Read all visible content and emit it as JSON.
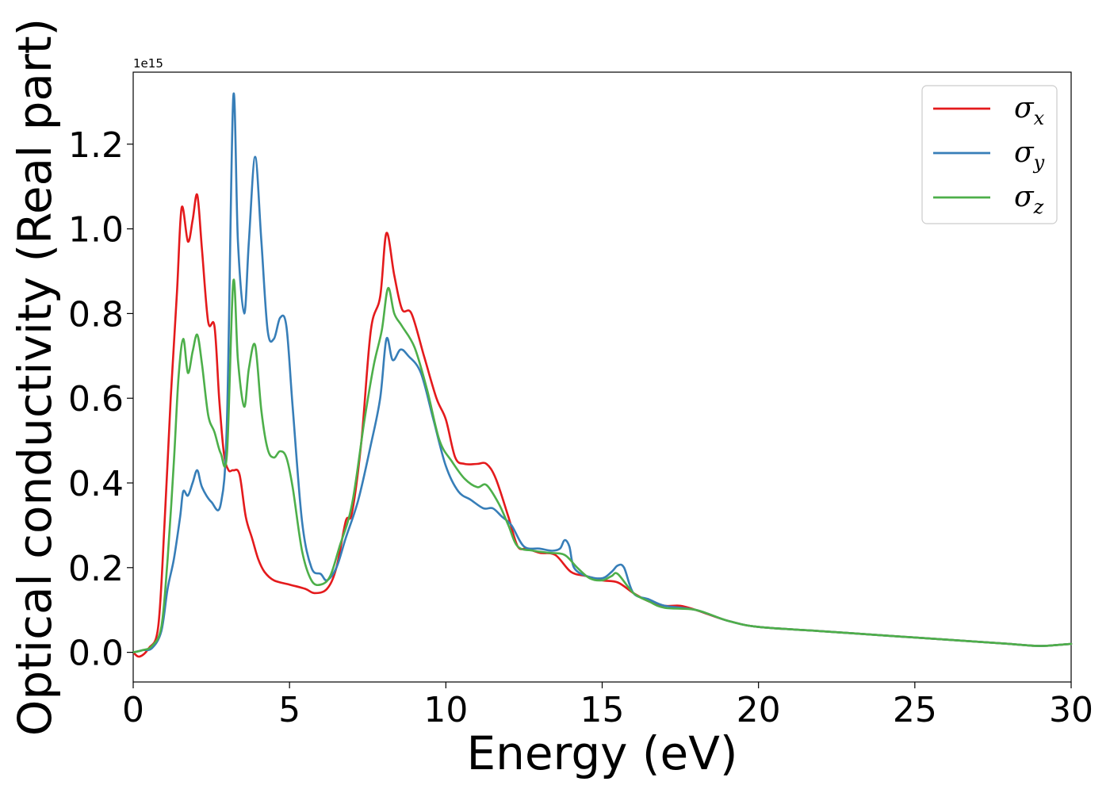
{
  "chart_data": {
    "type": "line",
    "title": "",
    "xlabel": "Energy (eV)",
    "ylabel": "Optical conductivity (Real part)",
    "y_offset_label": "1e15",
    "xlim": [
      0,
      30
    ],
    "ylim": [
      -0.07,
      1.37
    ],
    "x_ticks": [
      0,
      5,
      10,
      15,
      20,
      25,
      30
    ],
    "x_tick_labels": [
      "0",
      "5",
      "10",
      "15",
      "20",
      "25",
      "30"
    ],
    "y_ticks": [
      0.0,
      0.2,
      0.4,
      0.6,
      0.8,
      1.0,
      1.2
    ],
    "y_tick_labels": [
      "0.0",
      "0.2",
      "0.4",
      "0.6",
      "0.8",
      "1.0",
      "1.2"
    ],
    "grid": false,
    "legend_position": "top-right",
    "series": [
      {
        "name": "σx",
        "symbol": "σ",
        "subscript": "x",
        "color": "#e41a1c",
        "x": [
          0,
          0.2,
          0.5,
          0.8,
          1.0,
          1.2,
          1.4,
          1.55,
          1.75,
          1.9,
          2.05,
          2.2,
          2.4,
          2.6,
          2.75,
          2.9,
          3.05,
          3.2,
          3.4,
          3.6,
          3.8,
          4.0,
          4.2,
          4.5,
          5.0,
          5.5,
          5.8,
          6.2,
          6.5,
          6.8,
          7.0,
          7.3,
          7.6,
          7.9,
          8.1,
          8.35,
          8.6,
          8.9,
          9.3,
          9.7,
          10.0,
          10.3,
          10.6,
          11.0,
          11.3,
          11.6,
          12.0,
          12.3,
          12.6,
          13.0,
          13.5,
          14.0,
          14.5,
          15.0,
          15.5,
          16.0,
          16.5,
          17.0,
          17.5,
          18.0,
          19.0,
          20.0,
          22.0,
          24.0,
          26.0,
          28.0,
          29.0,
          30.0
        ],
        "y": [
          0.0,
          -0.01,
          0.01,
          0.06,
          0.3,
          0.6,
          0.85,
          1.05,
          0.97,
          1.02,
          1.08,
          0.95,
          0.78,
          0.77,
          0.6,
          0.47,
          0.43,
          0.43,
          0.42,
          0.32,
          0.27,
          0.22,
          0.19,
          0.17,
          0.16,
          0.15,
          0.14,
          0.15,
          0.2,
          0.31,
          0.33,
          0.5,
          0.76,
          0.84,
          0.99,
          0.89,
          0.81,
          0.8,
          0.7,
          0.6,
          0.55,
          0.46,
          0.445,
          0.445,
          0.445,
          0.41,
          0.32,
          0.25,
          0.245,
          0.235,
          0.23,
          0.19,
          0.18,
          0.17,
          0.165,
          0.14,
          0.12,
          0.11,
          0.11,
          0.1,
          0.075,
          0.06,
          0.05,
          0.04,
          0.03,
          0.02,
          0.015,
          0.02
        ]
      },
      {
        "name": "σy",
        "symbol": "σ",
        "subscript": "y",
        "color": "#377eb8",
        "x": [
          0,
          0.3,
          0.6,
          0.9,
          1.1,
          1.3,
          1.5,
          1.6,
          1.75,
          1.9,
          2.05,
          2.2,
          2.5,
          2.8,
          3.0,
          3.2,
          3.35,
          3.55,
          3.7,
          3.9,
          4.1,
          4.3,
          4.5,
          4.7,
          4.9,
          5.1,
          5.4,
          5.7,
          6.0,
          6.2,
          6.5,
          6.8,
          7.2,
          7.6,
          7.9,
          8.1,
          8.3,
          8.55,
          8.8,
          9.2,
          9.6,
          10.0,
          10.4,
          10.8,
          11.2,
          11.5,
          11.8,
          12.1,
          12.5,
          13.0,
          13.4,
          13.65,
          13.8,
          13.95,
          14.1,
          14.5,
          15.0,
          15.3,
          15.5,
          15.7,
          16.0,
          16.5,
          17.0,
          18.0,
          19.0,
          20.0,
          22.0,
          24.0,
          26.0,
          28.0,
          29.0,
          30.0
        ],
        "y": [
          0.0,
          0.005,
          0.01,
          0.05,
          0.15,
          0.22,
          0.32,
          0.38,
          0.37,
          0.4,
          0.43,
          0.39,
          0.355,
          0.35,
          0.55,
          1.31,
          0.97,
          0.8,
          0.97,
          1.17,
          0.97,
          0.76,
          0.74,
          0.79,
          0.77,
          0.58,
          0.31,
          0.2,
          0.185,
          0.17,
          0.2,
          0.27,
          0.36,
          0.49,
          0.6,
          0.74,
          0.69,
          0.715,
          0.7,
          0.66,
          0.55,
          0.44,
          0.38,
          0.36,
          0.34,
          0.34,
          0.32,
          0.3,
          0.25,
          0.245,
          0.24,
          0.245,
          0.265,
          0.25,
          0.2,
          0.18,
          0.175,
          0.19,
          0.205,
          0.2,
          0.14,
          0.125,
          0.11,
          0.1,
          0.075,
          0.06,
          0.05,
          0.04,
          0.03,
          0.02,
          0.015,
          0.02
        ]
      },
      {
        "name": "σz",
        "symbol": "σ",
        "subscript": "z",
        "color": "#4daf4a",
        "x": [
          0,
          0.3,
          0.6,
          0.9,
          1.1,
          1.3,
          1.45,
          1.6,
          1.75,
          1.9,
          2.05,
          2.2,
          2.4,
          2.6,
          2.8,
          3.0,
          3.2,
          3.35,
          3.55,
          3.7,
          3.9,
          4.1,
          4.3,
          4.5,
          4.7,
          4.9,
          5.1,
          5.4,
          5.7,
          6.0,
          6.3,
          6.6,
          7.0,
          7.4,
          7.7,
          7.95,
          8.15,
          8.35,
          8.6,
          9.0,
          9.4,
          9.8,
          10.2,
          10.6,
          11.0,
          11.3,
          11.7,
          12.0,
          12.3,
          12.8,
          13.3,
          13.8,
          14.2,
          14.6,
          15.0,
          15.3,
          15.5,
          16.0,
          16.5,
          17.0,
          18.0,
          19.0,
          20.0,
          22.0,
          24.0,
          26.0,
          28.0,
          29.0,
          30.0
        ],
        "y": [
          0.0,
          0.005,
          0.015,
          0.06,
          0.22,
          0.45,
          0.65,
          0.74,
          0.66,
          0.71,
          0.75,
          0.68,
          0.56,
          0.52,
          0.47,
          0.47,
          0.875,
          0.69,
          0.58,
          0.67,
          0.725,
          0.57,
          0.48,
          0.46,
          0.475,
          0.46,
          0.39,
          0.24,
          0.17,
          0.16,
          0.18,
          0.25,
          0.35,
          0.55,
          0.68,
          0.76,
          0.86,
          0.8,
          0.77,
          0.72,
          0.62,
          0.5,
          0.45,
          0.41,
          0.39,
          0.395,
          0.35,
          0.3,
          0.25,
          0.24,
          0.235,
          0.23,
          0.2,
          0.175,
          0.17,
          0.18,
          0.185,
          0.14,
          0.12,
          0.105,
          0.1,
          0.075,
          0.06,
          0.05,
          0.04,
          0.03,
          0.02,
          0.015,
          0.02
        ]
      }
    ]
  }
}
